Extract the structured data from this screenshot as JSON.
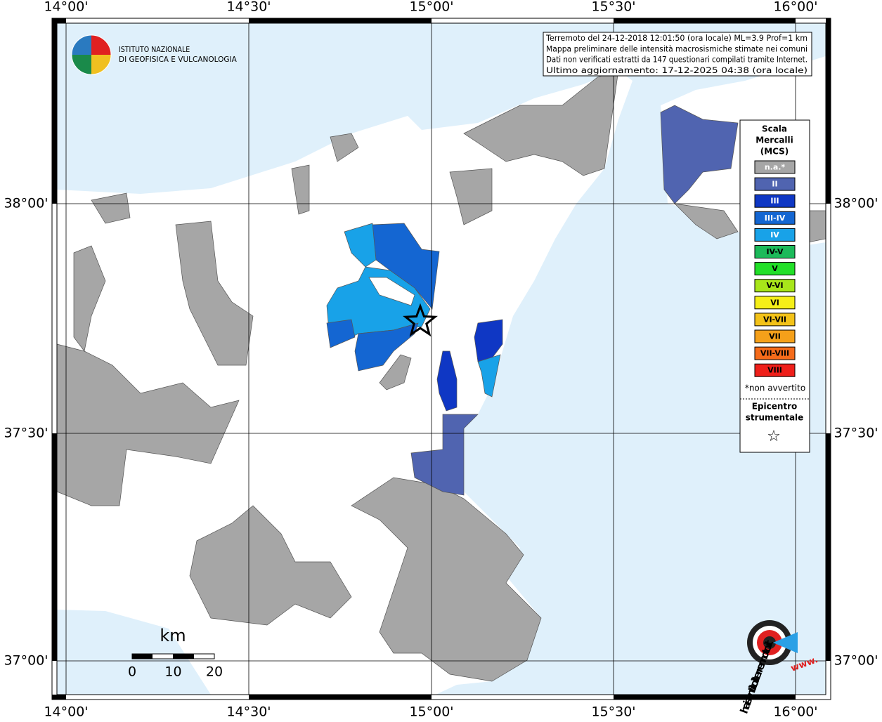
{
  "map": {
    "longitude_labels": [
      "14°00'",
      "14°30'",
      "15°00'",
      "15°30'",
      "16°00'"
    ],
    "latitude_labels": [
      "38°00'",
      "37°30'",
      "37°00'"
    ]
  },
  "header": {
    "institute": [
      "ISTITUTO NAZIONALE",
      "DI GEOFISICA E VULCANOLOGIA"
    ]
  },
  "info_box": {
    "lines": [
      "Terremoto del 24-12-2018 12:01:50 (ora locale) ML=3.9 Prof=1 km",
      "Mappa preliminare delle intensità macrosismiche stimate nei comuni",
      "Dati non verificati estratti da 147 questionari compilati tramite Internet.",
      "Ultimo aggiornamento: 17-12-2025 04:38 (ora locale)"
    ]
  },
  "legend": {
    "title": [
      "Scala",
      "Mercalli",
      "(MCS)"
    ],
    "items": [
      {
        "label": "n.a.*",
        "color": "#a6a6a6"
      },
      {
        "label": "II",
        "color": "#5064b0"
      },
      {
        "label": "III",
        "color": "#0f37c4"
      },
      {
        "label": "III-IV",
        "color": "#1466d2"
      },
      {
        "label": "IV",
        "color": "#18a2e8"
      },
      {
        "label": "IV-V",
        "color": "#1cba5a"
      },
      {
        "label": "V",
        "color": "#22e028"
      },
      {
        "label": "V-VI",
        "color": "#a8e61a"
      },
      {
        "label": "VI",
        "color": "#f5ef18"
      },
      {
        "label": "VI-VII",
        "color": "#f3c218"
      },
      {
        "label": "VII",
        "color": "#f5a01a"
      },
      {
        "label": "VII-VIII",
        "color": "#f56b1a"
      },
      {
        "label": "VIII",
        "color": "#ef1f1a"
      }
    ],
    "note": "*non avvertito",
    "epicenter_title": [
      "Epicentro",
      "strumentale"
    ],
    "epicenter_symbol": "☆"
  },
  "scale_bar": {
    "unit": "km",
    "labels": [
      "0",
      "10",
      "20"
    ]
  },
  "site_logo": {
    "prefix": "www.",
    "text": "haisentitoilterremoto.it"
  }
}
